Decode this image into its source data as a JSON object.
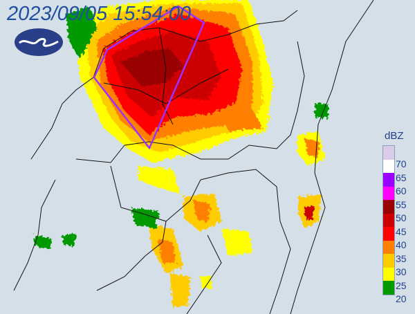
{
  "timestamp": "2023/09/05 15:54:00",
  "legend": {
    "unit": "dBZ",
    "colors": [
      "#d8cce8",
      "#ffffff",
      "#9900ff",
      "#ff00ff",
      "#990000",
      "#cc0000",
      "#ff0000",
      "#ff8000",
      "#ffcc00",
      "#ffff00",
      "#009900"
    ],
    "labels": [
      "70",
      "65",
      "60",
      "55",
      "50",
      "45",
      "40",
      "35",
      "30",
      "25",
      "20"
    ]
  },
  "warning_polygon_color": "#9b30ff",
  "logo": "cwb-logo-icon"
}
